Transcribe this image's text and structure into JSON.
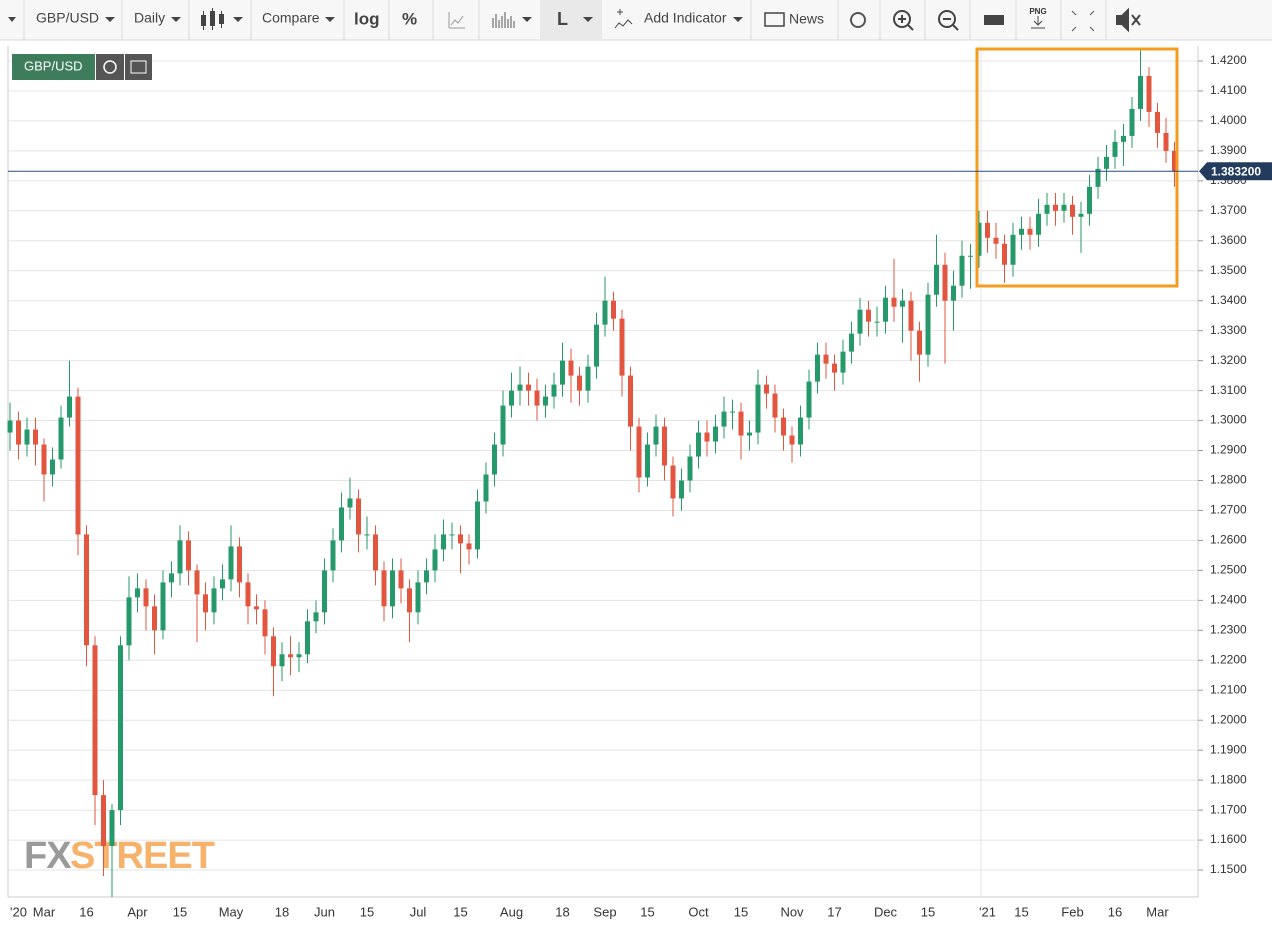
{
  "toolbar": {
    "symbol": "GBP/USD",
    "interval": "Daily",
    "compare": "Compare",
    "log": "log",
    "percent": "%",
    "line": "L",
    "indicator": "Add Indicator",
    "news": "News",
    "png": "PNG"
  },
  "watermark": {
    "left": "FX",
    "right": "STREET"
  },
  "chart_data": {
    "type": "candlestick",
    "name": "GBP/USD",
    "up_color": "#26996b",
    "down_color": "#e2553f",
    "grid": true,
    "categories": [
      null,
      "'20",
      null,
      null,
      "Mar",
      null,
      null,
      null,
      null,
      "16",
      null,
      null,
      null,
      null,
      null,
      "Apr",
      null,
      null,
      null,
      null,
      "15",
      null,
      null,
      null,
      null,
      null,
      "May",
      null,
      null,
      null,
      null,
      null,
      "18",
      null,
      null,
      null,
      null,
      "Jun",
      null,
      null,
      null,
      null,
      "15",
      null,
      null,
      null,
      null,
      null,
      "Jul",
      null,
      null,
      null,
      null,
      "15",
      null,
      null,
      null,
      null,
      null,
      "Aug",
      null,
      null,
      null,
      null,
      null,
      "18",
      null,
      null,
      null,
      null,
      "Sep",
      null,
      null,
      null,
      null,
      "15",
      null,
      null,
      null,
      null,
      null,
      "Oct",
      null,
      null,
      null,
      null,
      "15",
      null,
      null,
      null,
      null,
      null,
      "Nov",
      null,
      null,
      null,
      null,
      "17",
      null,
      null,
      null,
      null,
      null,
      "Dec",
      null,
      null,
      null,
      null,
      "15",
      null,
      null,
      null,
      null,
      null,
      null,
      "'21",
      null,
      null,
      null,
      "15",
      null,
      null,
      null,
      null,
      null,
      "Feb",
      null,
      null,
      null,
      null,
      "16",
      null,
      null,
      null,
      null,
      "Mar",
      null,
      null
    ],
    "open": [
      1.296,
      1.3,
      1.292,
      1.297,
      1.292,
      1.282,
      1.287,
      1.301,
      1.308,
      1.262,
      1.225,
      1.175,
      1.158,
      1.17,
      1.225,
      1.241,
      1.244,
      1.238,
      1.23,
      1.246,
      1.249,
      1.26,
      1.25,
      1.242,
      1.236,
      1.244,
      1.247,
      1.258,
      1.246,
      1.238,
      1.237,
      1.228,
      1.218,
      1.222,
      1.221,
      1.222,
      1.233,
      1.236,
      1.25,
      1.26,
      1.271,
      1.274,
      1.262,
      1.262,
      1.25,
      1.238,
      1.25,
      1.244,
      1.236,
      1.246,
      1.25,
      1.257,
      1.262,
      1.262,
      1.259,
      1.257,
      1.273,
      1.282,
      1.292,
      1.305,
      1.31,
      1.312,
      1.31,
      1.305,
      1.308,
      1.312,
      1.32,
      1.315,
      1.31,
      1.318,
      1.332,
      1.34,
      1.334,
      1.315,
      1.298,
      1.281,
      1.292,
      1.298,
      1.285,
      1.274,
      1.28,
      1.288,
      1.296,
      1.293,
      1.298,
      1.303,
      1.303,
      1.295,
      1.296,
      1.312,
      1.309,
      1.301,
      1.295,
      1.292,
      1.301,
      1.313,
      1.322,
      1.319,
      1.316,
      1.323,
      1.329,
      1.337,
      1.333,
      1.333,
      1.341,
      1.338,
      1.34,
      1.33,
      1.322,
      1.342,
      1.352,
      1.34,
      1.345,
      1.355,
      1.355,
      1.366,
      1.361,
      1.359,
      1.352,
      1.362,
      1.364,
      1.362,
      1.369,
      1.372,
      1.37,
      1.372,
      1.368,
      1.369,
      1.378,
      1.384,
      1.388,
      1.393,
      1.395,
      1.404,
      1.415,
      1.403,
      1.396,
      1.39
    ],
    "high": [
      1.306,
      1.303,
      1.301,
      1.301,
      1.294,
      1.291,
      1.305,
      1.32,
      1.311,
      1.265,
      1.228,
      1.18,
      1.172,
      1.228,
      1.248,
      1.249,
      1.247,
      1.242,
      1.25,
      1.253,
      1.265,
      1.263,
      1.252,
      1.246,
      1.248,
      1.252,
      1.265,
      1.261,
      1.249,
      1.242,
      1.24,
      1.231,
      1.226,
      1.228,
      1.226,
      1.237,
      1.24,
      1.254,
      1.264,
      1.276,
      1.281,
      1.277,
      1.268,
      1.265,
      1.253,
      1.254,
      1.254,
      1.247,
      1.25,
      1.254,
      1.262,
      1.267,
      1.266,
      1.265,
      1.262,
      1.277,
      1.286,
      1.296,
      1.31,
      1.316,
      1.318,
      1.316,
      1.314,
      1.312,
      1.316,
      1.326,
      1.324,
      1.318,
      1.322,
      1.336,
      1.348,
      1.343,
      1.337,
      1.318,
      1.301,
      1.296,
      1.302,
      1.301,
      1.288,
      1.284,
      1.292,
      1.3,
      1.3,
      1.302,
      1.308,
      1.307,
      1.306,
      1.3,
      1.317,
      1.315,
      1.312,
      1.304,
      1.298,
      1.305,
      1.317,
      1.326,
      1.326,
      1.322,
      1.327,
      1.333,
      1.341,
      1.34,
      1.338,
      1.345,
      1.354,
      1.344,
      1.343,
      1.333,
      1.346,
      1.362,
      1.356,
      1.35,
      1.36,
      1.359,
      1.37,
      1.37,
      1.366,
      1.362,
      1.366,
      1.368,
      1.368,
      1.374,
      1.376,
      1.376,
      1.376,
      1.375,
      1.373,
      1.382,
      1.388,
      1.392,
      1.397,
      1.399,
      1.408,
      1.424,
      1.418,
      1.406,
      1.401,
      1.393
    ],
    "low": [
      1.29,
      1.287,
      1.288,
      1.285,
      1.273,
      1.278,
      1.284,
      1.298,
      1.255,
      1.218,
      1.165,
      1.148,
      1.141,
      1.165,
      1.22,
      1.236,
      1.23,
      1.222,
      1.227,
      1.241,
      1.245,
      1.245,
      1.226,
      1.23,
      1.232,
      1.24,
      1.243,
      1.241,
      1.232,
      1.232,
      1.222,
      1.208,
      1.213,
      1.215,
      1.216,
      1.219,
      1.229,
      1.232,
      1.246,
      1.256,
      1.267,
      1.256,
      1.257,
      1.245,
      1.233,
      1.234,
      1.239,
      1.226,
      1.232,
      1.242,
      1.246,
      1.253,
      1.257,
      1.249,
      1.252,
      1.254,
      1.269,
      1.278,
      1.288,
      1.301,
      1.305,
      1.305,
      1.3,
      1.301,
      1.304,
      1.308,
      1.306,
      1.305,
      1.306,
      1.314,
      1.328,
      1.33,
      1.308,
      1.29,
      1.276,
      1.278,
      1.288,
      1.28,
      1.268,
      1.27,
      1.276,
      1.284,
      1.288,
      1.289,
      1.294,
      1.297,
      1.287,
      1.29,
      1.292,
      1.304,
      1.296,
      1.29,
      1.286,
      1.288,
      1.297,
      1.309,
      1.314,
      1.31,
      1.312,
      1.319,
      1.325,
      1.328,
      1.328,
      1.329,
      1.333,
      1.326,
      1.32,
      1.313,
      1.318,
      1.338,
      1.319,
      1.33,
      1.341,
      1.344,
      1.351,
      1.356,
      1.354,
      1.346,
      1.348,
      1.357,
      1.357,
      1.358,
      1.365,
      1.365,
      1.366,
      1.362,
      1.356,
      1.365,
      1.374,
      1.38,
      1.384,
      1.385,
      1.391,
      1.4,
      1.398,
      1.391,
      1.386,
      1.378
    ],
    "close": [
      1.3,
      1.292,
      1.297,
      1.292,
      1.282,
      1.287,
      1.301,
      1.308,
      1.262,
      1.225,
      1.175,
      1.158,
      1.17,
      1.225,
      1.241,
      1.244,
      1.238,
      1.23,
      1.246,
      1.249,
      1.26,
      1.25,
      1.242,
      1.236,
      1.244,
      1.247,
      1.258,
      1.246,
      1.238,
      1.237,
      1.228,
      1.218,
      1.222,
      1.221,
      1.222,
      1.233,
      1.236,
      1.25,
      1.26,
      1.271,
      1.274,
      1.262,
      1.262,
      1.25,
      1.238,
      1.25,
      1.244,
      1.236,
      1.246,
      1.25,
      1.257,
      1.262,
      1.262,
      1.259,
      1.257,
      1.273,
      1.282,
      1.292,
      1.305,
      1.31,
      1.312,
      1.31,
      1.305,
      1.308,
      1.312,
      1.32,
      1.315,
      1.31,
      1.318,
      1.332,
      1.34,
      1.334,
      1.315,
      1.298,
      1.281,
      1.292,
      1.298,
      1.285,
      1.274,
      1.28,
      1.288,
      1.296,
      1.293,
      1.298,
      1.303,
      1.303,
      1.295,
      1.296,
      1.312,
      1.309,
      1.301,
      1.295,
      1.292,
      1.301,
      1.313,
      1.322,
      1.319,
      1.316,
      1.323,
      1.329,
      1.337,
      1.333,
      1.333,
      1.341,
      1.338,
      1.34,
      1.33,
      1.322,
      1.342,
      1.352,
      1.34,
      1.345,
      1.355,
      1.355,
      1.366,
      1.361,
      1.359,
      1.352,
      1.362,
      1.364,
      1.362,
      1.369,
      1.372,
      1.37,
      1.372,
      1.368,
      1.369,
      1.378,
      1.384,
      1.388,
      1.393,
      1.395,
      1.404,
      1.415,
      1.403,
      1.396,
      1.39,
      1.383
    ],
    "ylim": [
      1.141,
      1.425
    ],
    "yticks": [
      {
        "value": 1.15,
        "label": "1.1500"
      },
      {
        "value": 1.16,
        "label": "1.1600"
      },
      {
        "value": 1.17,
        "label": "1.1700"
      },
      {
        "value": 1.18,
        "label": "1.1800"
      },
      {
        "value": 1.19,
        "label": "1.1900"
      },
      {
        "value": 1.2,
        "label": "1.2000"
      },
      {
        "value": 1.21,
        "label": "1.2100"
      },
      {
        "value": 1.22,
        "label": "1.2200"
      },
      {
        "value": 1.23,
        "label": "1.2300"
      },
      {
        "value": 1.24,
        "label": "1.2400"
      },
      {
        "value": 1.25,
        "label": "1.2500"
      },
      {
        "value": 1.26,
        "label": "1.2600"
      },
      {
        "value": 1.27,
        "label": "1.2700"
      },
      {
        "value": 1.28,
        "label": "1.2800"
      },
      {
        "value": 1.29,
        "label": "1.2900"
      },
      {
        "value": 1.3,
        "label": "1.3000"
      },
      {
        "value": 1.31,
        "label": "1.3100"
      },
      {
        "value": 1.32,
        "label": "1.3200"
      },
      {
        "value": 1.33,
        "label": "1.3300"
      },
      {
        "value": 1.34,
        "label": "1.3400"
      },
      {
        "value": 1.35,
        "label": "1.3500"
      },
      {
        "value": 1.36,
        "label": "1.3600"
      },
      {
        "value": 1.37,
        "label": "1.3700"
      },
      {
        "value": 1.38,
        "label": "1.3800"
      },
      {
        "value": 1.39,
        "label": "1.3900"
      },
      {
        "value": 1.4,
        "label": "1.4000"
      },
      {
        "value": 1.41,
        "label": "1.4100"
      },
      {
        "value": 1.42,
        "label": "1.4200"
      }
    ],
    "last_price": {
      "value": 1.3832,
      "label": "1.383200"
    }
  }
}
